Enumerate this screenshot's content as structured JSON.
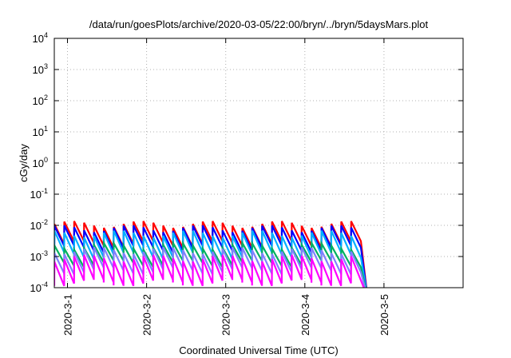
{
  "chart_data": {
    "type": "line",
    "title": "/data/run/goesPlots/archive/2020-03-05/22:00/bryn/../bryn/5daysMars.plot",
    "xlabel": "Coordinated Universal Time (UTC)",
    "ylabel": "cGy/day",
    "y_scale": "log",
    "ylim": [
      0.0001,
      10000
    ],
    "y_ticks": [
      {
        "base": "10",
        "exp": "4"
      },
      {
        "base": "10",
        "exp": "3"
      },
      {
        "base": "10",
        "exp": "2"
      },
      {
        "base": "10",
        "exp": "1"
      },
      {
        "base": "10",
        "exp": "0"
      },
      {
        "base": "10",
        "exp": "-1"
      },
      {
        "base": "10",
        "exp": "-2"
      },
      {
        "base": "10",
        "exp": "-3"
      },
      {
        "base": "10",
        "exp": "-4"
      }
    ],
    "xlim": [
      "2020-02-29T20:00",
      "2020-03-06T00:00"
    ],
    "x_ticks": [
      "2020-3-1",
      "2020-3-2",
      "2020-3-3",
      "2020-3-4",
      "2020-3-5"
    ],
    "grid": true,
    "legend": "none",
    "data_end": "2020-03-04T17:00",
    "cycle_hours": 3,
    "series": [
      {
        "color": "#ff0000",
        "peak": 0.011,
        "low": 0.0025
      },
      {
        "color": "#0000ff",
        "peak": 0.008,
        "low": 0.0018
      },
      {
        "color": "#00b0ff",
        "peak": 0.0055,
        "low": 0.0011
      },
      {
        "color": "#00b060",
        "peak": 0.0022,
        "low": 0.0006
      },
      {
        "color": "#8080ff",
        "peak": 0.0016,
        "low": 0.00035
      },
      {
        "color": "#ff00ff",
        "peak": 0.0009,
        "low": 0.00015
      }
    ]
  }
}
